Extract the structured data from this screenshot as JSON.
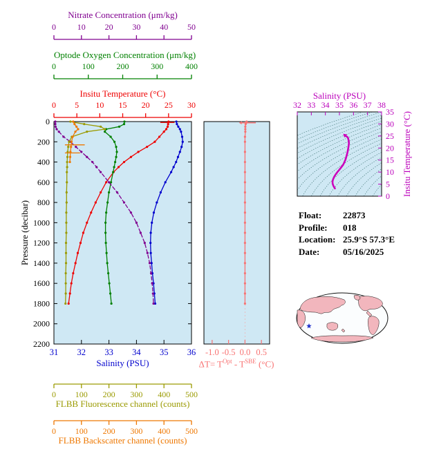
{
  "figure": {
    "background": "#ffffff",
    "plot_background": "#cfe8f4"
  },
  "chart_data": [
    {
      "id": "profile-plot",
      "type": "line",
      "ylabel": "Pressure (decibar)",
      "ylim": [
        0,
        2200
      ],
      "y_ticks": [
        0,
        200,
        400,
        600,
        800,
        1000,
        1200,
        1400,
        1600,
        1800,
        2000,
        2200
      ],
      "y_inverted": true,
      "background": "#cfe8f4",
      "axes": {
        "salinity": {
          "label": "Salinity (PSU)",
          "side": "bottom",
          "range": [
            31,
            36
          ],
          "ticks": [
            31,
            32,
            33,
            34,
            35,
            36
          ],
          "color": "#0000cd"
        },
        "temperature": {
          "label": "Insitu Temperature (°C)",
          "side": "top",
          "range": [
            0,
            30
          ],
          "ticks": [
            0,
            5,
            10,
            15,
            20,
            25,
            30
          ],
          "color": "#ee0000"
        },
        "oxygen": {
          "label": "Optode Oxygen Concentration (μm/kg)",
          "side": "top",
          "range": [
            0,
            400
          ],
          "ticks": [
            0,
            100,
            200,
            300,
            400
          ],
          "color": "#008000"
        },
        "nitrate": {
          "label": "Nitrate Concentration (μm/kg)",
          "side": "top",
          "range": [
            0,
            50
          ],
          "ticks": [
            0,
            10,
            20,
            30,
            40,
            50
          ],
          "color": "#800090"
        },
        "fluorescence": {
          "label": "FLBB Fluorescence channel (counts)",
          "side": "bottom",
          "range": [
            0,
            500
          ],
          "ticks": [
            0,
            100,
            200,
            300,
            400,
            500
          ],
          "color": "#9a9a00"
        },
        "backscatter": {
          "label": "FLBB Backscatter channel (counts)",
          "side": "bottom",
          "range": [
            0,
            500
          ],
          "ticks": [
            0,
            100,
            200,
            300,
            400,
            500
          ],
          "color": "#ee7700"
        }
      },
      "series": [
        {
          "name": "salinity",
          "axis": "salinity",
          "color": "#0000cd",
          "dash": "",
          "pressure": [
            0,
            25,
            50,
            75,
            100,
            150,
            200,
            250,
            300,
            350,
            400,
            450,
            500,
            600,
            700,
            800,
            900,
            1000,
            1100,
            1200,
            1300,
            1400,
            1500,
            1600,
            1700,
            1800
          ],
          "values": [
            35.45,
            35.47,
            35.52,
            35.58,
            35.62,
            35.66,
            35.68,
            35.64,
            35.58,
            35.51,
            35.44,
            35.35,
            35.26,
            35.05,
            34.88,
            34.74,
            34.63,
            34.56,
            34.52,
            34.51,
            34.52,
            34.55,
            34.58,
            34.62,
            34.65,
            34.68
          ]
        },
        {
          "name": "temperature",
          "axis": "temperature",
          "color": "#ee0000",
          "dash": "",
          "pressure": [
            0,
            25,
            50,
            75,
            100,
            150,
            200,
            250,
            300,
            350,
            400,
            450,
            500,
            600,
            700,
            800,
            900,
            1000,
            1100,
            1200,
            1300,
            1400,
            1500,
            1600,
            1700,
            1800
          ],
          "values": [
            25.0,
            24.9,
            24.8,
            24.5,
            24.0,
            23.0,
            22.0,
            20.3,
            18.4,
            16.8,
            15.3,
            14.1,
            13.0,
            11.4,
            10.2,
            9.1,
            8.1,
            7.2,
            6.4,
            5.8,
            5.2,
            4.7,
            4.2,
            3.8,
            3.5,
            3.2
          ],
          "bars": [
            {
              "pressure": 8,
              "from": 23.2,
              "to": 26.3
            }
          ]
        },
        {
          "name": "oxygen",
          "axis": "oxygen",
          "color": "#008000",
          "dash": "",
          "pressure": [
            0,
            25,
            50,
            75,
            100,
            150,
            200,
            250,
            300,
            350,
            400,
            450,
            500,
            600,
            700,
            800,
            900,
            1000,
            1100,
            1200,
            1300,
            1400,
            1500,
            1600,
            1700,
            1800
          ],
          "values": [
            205,
            204,
            190,
            152,
            148,
            165,
            176,
            181,
            183,
            181,
            178,
            175,
            172,
            166,
            160,
            156,
            152,
            150,
            150,
            151,
            153,
            155,
            158,
            161,
            164,
            167
          ]
        },
        {
          "name": "nitrate",
          "axis": "nitrate",
          "color": "#800090",
          "dash": "5,3",
          "pressure": [
            0,
            25,
            50,
            75,
            100,
            150,
            200,
            250,
            300,
            350,
            400,
            450,
            500,
            600,
            700,
            800,
            900,
            1000,
            1100,
            1200,
            1300,
            1400,
            1500,
            1600,
            1700,
            1800
          ],
          "values": [
            0.5,
            0.5,
            0.6,
            1.0,
            1.8,
            3.5,
            6.0,
            8.0,
            10.0,
            12.0,
            14.0,
            15.5,
            17.0,
            20.0,
            23.0,
            25.5,
            28.0,
            30.0,
            31.5,
            33.0,
            34.0,
            34.8,
            35.3,
            35.7,
            36.0,
            36.2
          ]
        },
        {
          "name": "fluorescence",
          "axis": "fluorescence",
          "color": "#9a9a00",
          "dash": "",
          "pressure": [
            0,
            25,
            50,
            75,
            100,
            150,
            200,
            250,
            300,
            350,
            400,
            450,
            500,
            600,
            700,
            800,
            900,
            1000,
            1100,
            1200,
            1300,
            1400,
            1500,
            1600,
            1700,
            1800
          ],
          "values": [
            60,
            110,
            170,
            185,
            120,
            65,
            55,
            52,
            50,
            49,
            48,
            48,
            47,
            47,
            46,
            46,
            45,
            45,
            45,
            44,
            44,
            44,
            43,
            43,
            43,
            42
          ]
        },
        {
          "name": "backscatter",
          "axis": "backscatter",
          "color": "#ee7700",
          "dash": "",
          "pressure": [
            0,
            25,
            50,
            75,
            100,
            150,
            200,
            250,
            300,
            350,
            400
          ],
          "values": [
            70,
            75,
            82,
            88,
            78,
            68,
            64,
            62,
            60,
            59,
            58
          ],
          "bars": [
            {
              "pressure": 230,
              "from": 40,
              "to": 112
            },
            {
              "pressure": 310,
              "from": 40,
              "to": 95
            }
          ]
        }
      ]
    },
    {
      "id": "delta-t-plot",
      "type": "line",
      "xlim": [
        -1.25,
        0.75
      ],
      "x_tick_values": [
        -1.0,
        -0.5,
        0.0,
        0.5
      ],
      "x_tick_labels": [
        "-1.0",
        "-0.5",
        "0.0",
        "0.5"
      ],
      "color": "#f87272",
      "background": "#cfe8f4",
      "pressure": [
        0,
        15,
        25,
        50,
        75,
        100,
        150,
        200,
        300,
        400,
        500,
        600,
        700,
        800,
        900,
        1000,
        1100,
        1200,
        1300,
        1400,
        1500,
        1600,
        1700,
        1800
      ],
      "values": [
        0.05,
        0.03,
        0.02,
        0.01,
        0.01,
        0.01,
        0.0,
        0.0,
        0.0,
        0.0,
        0.0,
        0.0,
        0.0,
        0.0,
        0.0,
        0.0,
        0.0,
        0.0,
        0.0,
        0.0,
        0.0,
        0.0,
        0.0,
        0.0
      ],
      "surface_bar": {
        "pressure": 12,
        "from": -0.1,
        "to": 0.33
      }
    },
    {
      "id": "ts-diagram",
      "type": "line",
      "xlabel": "Salinity (PSU)",
      "ylabel": "Insitu Temperature (°C)",
      "xlim": [
        32,
        38
      ],
      "x_ticks": [
        32,
        33,
        34,
        35,
        36,
        37,
        38
      ],
      "ylim": [
        0,
        35
      ],
      "y_ticks": [
        0,
        5,
        10,
        15,
        20,
        25,
        30,
        35
      ],
      "curve_color": "#cc00bb",
      "axis_color": "#bb00bb",
      "background": "#cfe8f4",
      "contours": {
        "min": 21,
        "max": 30,
        "step": 0.5,
        "color": "#3a7070"
      },
      "points": [
        [
          34.68,
          3.2
        ],
        [
          34.65,
          3.5
        ],
        [
          34.62,
          3.8
        ],
        [
          34.58,
          4.2
        ],
        [
          34.55,
          4.7
        ],
        [
          34.52,
          5.2
        ],
        [
          34.51,
          5.8
        ],
        [
          34.52,
          6.4
        ],
        [
          34.56,
          7.2
        ],
        [
          34.63,
          8.1
        ],
        [
          34.74,
          9.1
        ],
        [
          34.88,
          10.2
        ],
        [
          35.05,
          11.4
        ],
        [
          35.26,
          13.0
        ],
        [
          35.35,
          14.1
        ],
        [
          35.44,
          15.3
        ],
        [
          35.51,
          16.8
        ],
        [
          35.58,
          18.4
        ],
        [
          35.64,
          20.3
        ],
        [
          35.68,
          22.0
        ],
        [
          35.66,
          23.0
        ],
        [
          35.62,
          24.0
        ],
        [
          35.58,
          24.5
        ],
        [
          35.52,
          24.8
        ],
        [
          35.47,
          24.9
        ],
        [
          35.45,
          25.0
        ]
      ]
    }
  ],
  "delta_plot_title": {
    "pre": "ΔT= T",
    "sup1": "Opt",
    "mid": " - T",
    "sup2": "SBE",
    "post": " (°C)"
  },
  "float_info": {
    "rows": [
      {
        "label": "Float:",
        "value": "22873"
      },
      {
        "label": "Profile:",
        "value": "018"
      },
      {
        "label": "Location:",
        "value": "25.9°S  57.3°E"
      },
      {
        "label": "Date:",
        "value": "05/16/2025"
      }
    ]
  },
  "map": {
    "land_color": "#f2b6bd",
    "ocean_color": "#fbfdfe",
    "outline_color": "#111111",
    "marker_color": "#2233cc"
  }
}
